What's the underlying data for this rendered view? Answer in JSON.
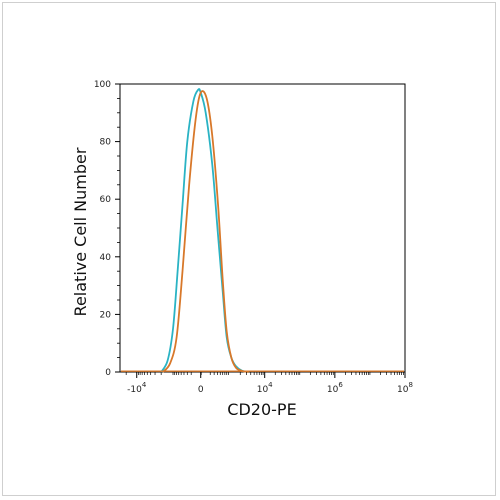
{
  "chart_data": {
    "type": "line",
    "title": "",
    "xlabel": "CD20-PE",
    "ylabel": "Relative Cell Number",
    "x_scale": "biexponential",
    "xlim": [
      -30000,
      100000000
    ],
    "ylim": [
      0,
      100
    ],
    "grid": false,
    "y_ticks": [
      "0",
      "20",
      "40",
      "60",
      "80",
      "100"
    ],
    "x_ticks": [
      {
        "base": "-10",
        "exp": "4",
        "value": -10000
      },
      {
        "base": "0",
        "exp": "",
        "value": 0
      },
      {
        "base": "10",
        "exp": "4",
        "value": 10000
      },
      {
        "base": "10",
        "exp": "6",
        "value": 1000000
      },
      {
        "base": "10",
        "exp": "8",
        "value": 100000000
      }
    ],
    "series": [
      {
        "color": "#2ab3c4",
        "x": [
          -2000,
          -1300,
          -900,
          -650,
          -450,
          -300,
          -150,
          -50,
          0,
          100,
          250,
          400,
          600,
          800,
          1100,
          1500,
          2200,
          3500
        ],
        "y": [
          0,
          4,
          15,
          35,
          58,
          80,
          94,
          98,
          97,
          90,
          72,
          50,
          28,
          12,
          5,
          2,
          0.5,
          0
        ]
      },
      {
        "color": "#d8782a",
        "x": [
          -1800,
          -1100,
          -700,
          -450,
          -250,
          -100,
          0,
          120,
          250,
          420,
          600,
          800,
          1100,
          1500,
          2200,
          3500
        ],
        "y": [
          0,
          3,
          12,
          35,
          65,
          88,
          97,
          95,
          82,
          58,
          32,
          14,
          5,
          1.5,
          0.4,
          0
        ]
      }
    ]
  }
}
